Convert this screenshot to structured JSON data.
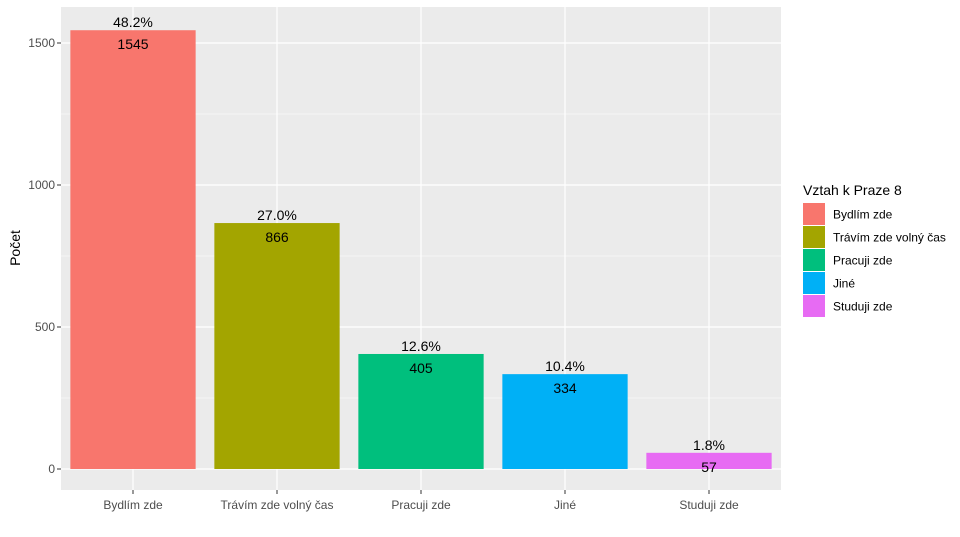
{
  "chart_data": {
    "type": "bar",
    "title": "",
    "xlabel": "",
    "ylabel": "Počet",
    "ylim": [
      0,
      1600
    ],
    "yticks": [
      0,
      500,
      1000,
      1500
    ],
    "ytick_labels": [
      "0",
      "500",
      "1000",
      "1500"
    ],
    "categories": [
      "Bydlím zde",
      "Trávím zde volný čas",
      "Pracuji zde",
      "Jiné",
      "Studuji zde"
    ],
    "values": [
      1545,
      866,
      405,
      334,
      57
    ],
    "value_labels": [
      "1545",
      "866",
      "405",
      "334",
      "57"
    ],
    "percent_labels": [
      "48.2%",
      "27.0%",
      "12.6%",
      "10.4%",
      "1.8%"
    ],
    "colors": [
      "#F8766D",
      "#A3A500",
      "#00BF7D",
      "#00B0F6",
      "#E76BF3"
    ],
    "grid": true,
    "legend": {
      "title": "Vztah k Praze 8",
      "position": "right",
      "entries": [
        "Bydlím zde",
        "Trávím zde volný čas",
        "Pracuji zde",
        "Jiné",
        "Studuji zde"
      ]
    }
  }
}
